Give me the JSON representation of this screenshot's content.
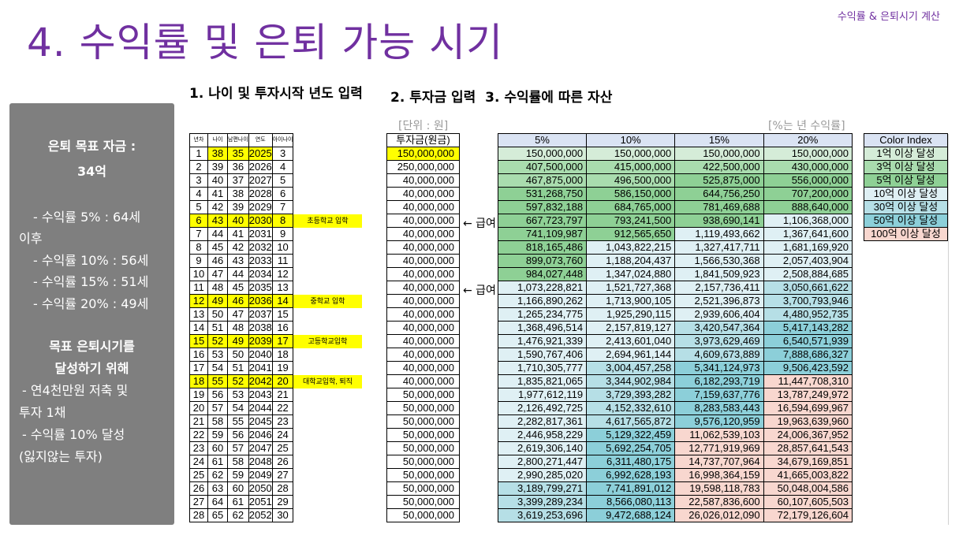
{
  "header": {
    "title": "4. 수익률 및 은퇴 가능 시기",
    "top_right": "수익률 & 은퇴시기 계산"
  },
  "subheadings": [
    "1. 나이 및 투자시작 년도 입력",
    "2. 투자금 입력",
    "3. 수익률에 따른 자산"
  ],
  "sidebar": {
    "goal_line1": "은퇴 목표 자금 :",
    "goal_line2": "34억",
    "r5a": "- 수익률   5% : 64세",
    "r5b": "이후",
    "r10": "- 수익률 10% : 56세",
    "r15": "- 수익률 15% : 51세",
    "r20": "- 수익률 20% : 49세",
    "plan_title1": "목표 은퇴시기를",
    "plan_title2": "달성하기 위해",
    "p1a": "- 연4천만원 저축 및",
    "p1b": "투자 1채",
    "p2a": "- 수익률 10% 달성",
    "p2b": "(잃지않는 투자)"
  },
  "notes": {
    "unit": "[단위 : 원]",
    "rate": "[%는 년 수익률]",
    "arrow1": "← 급여",
    "arrow2": "← 급여"
  },
  "age_table": {
    "headers": [
      "년차",
      "나이",
      "남편나이",
      "연도",
      "아이나이"
    ],
    "rows": [
      [
        "1",
        "38",
        "35",
        "2025",
        "3"
      ],
      [
        "2",
        "39",
        "36",
        "2026",
        "4"
      ],
      [
        "3",
        "40",
        "37",
        "2027",
        "5"
      ],
      [
        "4",
        "41",
        "38",
        "2028",
        "6"
      ],
      [
        "5",
        "42",
        "39",
        "2029",
        "7"
      ],
      [
        "6",
        "43",
        "40",
        "2030",
        "8"
      ],
      [
        "7",
        "44",
        "41",
        "2031",
        "9"
      ],
      [
        "8",
        "45",
        "42",
        "2032",
        "10"
      ],
      [
        "9",
        "46",
        "43",
        "2033",
        "11"
      ],
      [
        "10",
        "47",
        "44",
        "2034",
        "12"
      ],
      [
        "11",
        "48",
        "45",
        "2035",
        "13"
      ],
      [
        "12",
        "49",
        "46",
        "2036",
        "14"
      ],
      [
        "13",
        "50",
        "47",
        "2037",
        "15"
      ],
      [
        "14",
        "51",
        "48",
        "2038",
        "16"
      ],
      [
        "15",
        "52",
        "49",
        "2039",
        "17"
      ],
      [
        "16",
        "53",
        "50",
        "2040",
        "18"
      ],
      [
        "17",
        "54",
        "51",
        "2041",
        "19"
      ],
      [
        "18",
        "55",
        "52",
        "2042",
        "20"
      ],
      [
        "19",
        "56",
        "53",
        "2043",
        "21"
      ],
      [
        "20",
        "57",
        "54",
        "2044",
        "22"
      ],
      [
        "21",
        "58",
        "55",
        "2045",
        "23"
      ],
      [
        "22",
        "59",
        "56",
        "2046",
        "24"
      ],
      [
        "23",
        "60",
        "57",
        "2047",
        "25"
      ],
      [
        "24",
        "61",
        "58",
        "2048",
        "26"
      ],
      [
        "25",
        "62",
        "59",
        "2049",
        "27"
      ],
      [
        "26",
        "63",
        "60",
        "2050",
        "28"
      ],
      [
        "27",
        "64",
        "61",
        "2051",
        "29"
      ],
      [
        "28",
        "65",
        "62",
        "2052",
        "30"
      ]
    ],
    "milestones": [
      "",
      "",
      "",
      "",
      "",
      "초등학교 입학",
      "",
      "",
      "",
      "",
      "",
      "중학교 입학",
      "",
      "",
      "고등학교입학",
      "",
      "",
      "대학교입학, 퇴직",
      "",
      "",
      "",
      "",
      "",
      "",
      "",
      "",
      "",
      ""
    ]
  },
  "invest_table": {
    "header": "투자금(원금)",
    "values": [
      "150,000,000",
      "250,000,000",
      "40,000,000",
      "40,000,000",
      "40,000,000",
      "40,000,000",
      "40,000,000",
      "40,000,000",
      "40,000,000",
      "40,000,000",
      "40,000,000",
      "40,000,000",
      "40,000,000",
      "40,000,000",
      "40,000,000",
      "40,000,000",
      "40,000,000",
      "40,000,000",
      "50,000,000",
      "50,000,000",
      "50,000,000",
      "50,000,000",
      "50,000,000",
      "50,000,000",
      "50,000,000",
      "50,000,000",
      "50,000,000",
      "50,000,000"
    ]
  },
  "returns_table": {
    "headers": [
      "5%",
      "10%",
      "15%",
      "20%"
    ],
    "rows": [
      [
        "150,000,000",
        "150,000,000",
        "150,000,000",
        "150,000,000"
      ],
      [
        "407,500,000",
        "415,000,000",
        "422,500,000",
        "430,000,000"
      ],
      [
        "467,875,000",
        "496,500,000",
        "525,875,000",
        "556,000,000"
      ],
      [
        "531,268,750",
        "586,150,000",
        "644,756,250",
        "707,200,000"
      ],
      [
        "597,832,188",
        "684,765,000",
        "781,469,688",
        "888,640,000"
      ],
      [
        "667,723,797",
        "793,241,500",
        "938,690,141",
        "1,106,368,000"
      ],
      [
        "741,109,987",
        "912,565,650",
        "1,119,493,662",
        "1,367,641,600"
      ],
      [
        "818,165,486",
        "1,043,822,215",
        "1,327,417,711",
        "1,681,169,920"
      ],
      [
        "899,073,760",
        "1,188,204,437",
        "1,566,530,368",
        "2,057,403,904"
      ],
      [
        "984,027,448",
        "1,347,024,880",
        "1,841,509,923",
        "2,508,884,685"
      ],
      [
        "1,073,228,821",
        "1,521,727,368",
        "2,157,736,411",
        "3,050,661,622"
      ],
      [
        "1,166,890,262",
        "1,713,900,105",
        "2,521,396,873",
        "3,700,793,946"
      ],
      [
        "1,265,234,775",
        "1,925,290,115",
        "2,939,606,404",
        "4,480,952,735"
      ],
      [
        "1,368,496,514",
        "2,157,819,127",
        "3,420,547,364",
        "5,417,143,282"
      ],
      [
        "1,476,921,339",
        "2,413,601,040",
        "3,973,629,469",
        "6,540,571,939"
      ],
      [
        "1,590,767,406",
        "2,694,961,144",
        "4,609,673,889",
        "7,888,686,327"
      ],
      [
        "1,710,305,777",
        "3,004,457,258",
        "5,341,124,973",
        "9,506,423,592"
      ],
      [
        "1,835,821,065",
        "3,344,902,984",
        "6,182,293,719",
        "11,447,708,310"
      ],
      [
        "1,977,612,119",
        "3,729,393,282",
        "7,159,637,776",
        "13,787,249,972"
      ],
      [
        "2,126,492,725",
        "4,152,332,610",
        "8,283,583,443",
        "16,594,699,967"
      ],
      [
        "2,282,817,361",
        "4,617,565,872",
        "9,576,120,959",
        "19,963,639,960"
      ],
      [
        "2,446,958,229",
        "5,129,322,459",
        "11,062,539,103",
        "24,006,367,952"
      ],
      [
        "2,619,306,140",
        "5,692,254,705",
        "12,771,919,969",
        "28,857,641,543"
      ],
      [
        "2,800,271,447",
        "6,311,480,175",
        "14,737,707,964",
        "34,679,169,851"
      ],
      [
        "2,990,285,020",
        "6,992,628,193",
        "16,998,364,159",
        "41,665,003,822"
      ],
      [
        "3,189,799,271",
        "7,741,891,012",
        "19,598,118,783",
        "50,048,004,586"
      ],
      [
        "3,399,289,234",
        "8,566,080,113",
        "22,587,836,600",
        "60,107,605,503"
      ],
      [
        "3,619,253,696",
        "9,472,688,124",
        "26,026,012,090",
        "72,179,126,604"
      ]
    ]
  },
  "color_index": {
    "title": "Color Index",
    "items": [
      "1억 이상 달성",
      "3억 이상 달성",
      "5억 이상 달성",
      "10억 이상 달성",
      "30억 이상 달성",
      "50억 이상 달성",
      "100억 이상 달성"
    ],
    "colors": [
      "#d5ecd8",
      "#a9dcae",
      "#8ed095",
      "#dff0f4",
      "#b6dfe6",
      "#8ccfd9",
      "#f8d7cf"
    ]
  }
}
